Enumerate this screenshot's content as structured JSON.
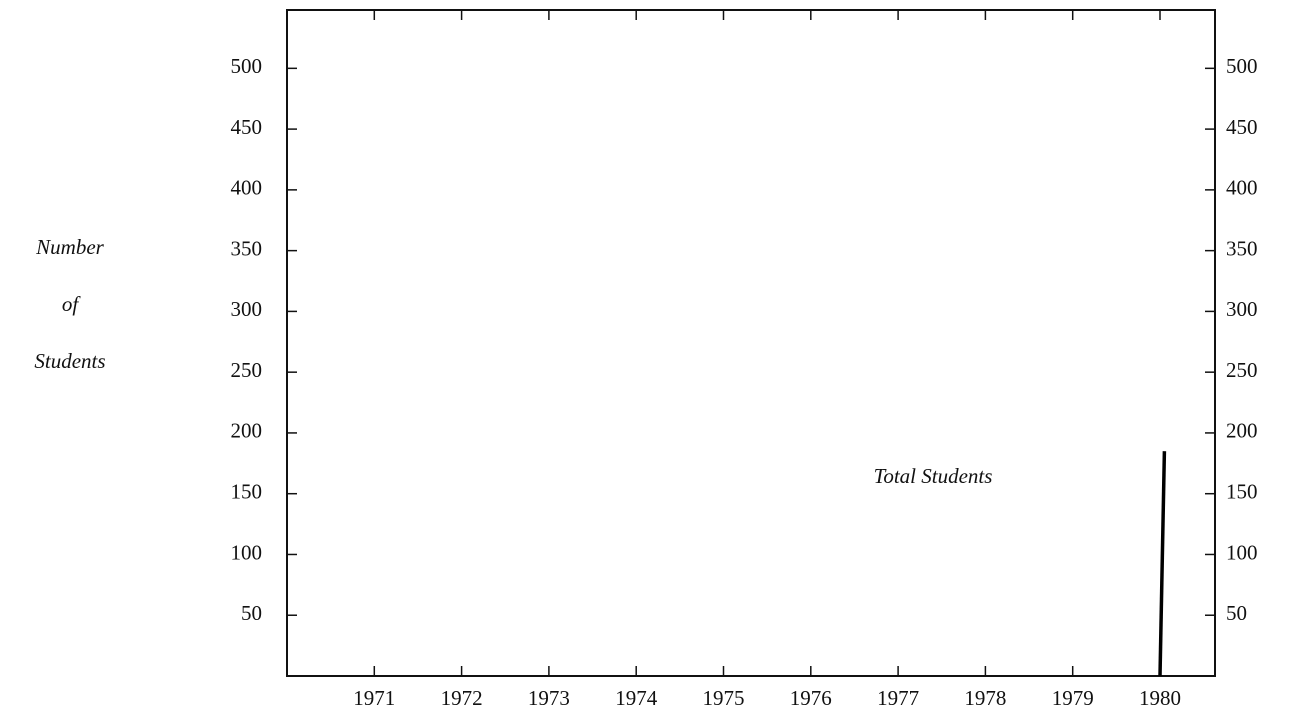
{
  "chart_data": {
    "type": "line",
    "y_label": [
      "Number",
      "of",
      "Students"
    ],
    "series": [
      {
        "name": "Total Students",
        "color": "#000000",
        "x": [
          1980,
          1980.05
        ],
        "values": [
          0,
          185
        ]
      }
    ],
    "xlim": [
      1970,
      1980.63
    ],
    "xticks": [
      1971,
      1972,
      1973,
      1974,
      1975,
      1976,
      1977,
      1978,
      1979,
      1980
    ],
    "ylim": [
      0,
      548
    ],
    "yticks": [
      50,
      100,
      150,
      200,
      250,
      300,
      350,
      400,
      450,
      500
    ],
    "y2lim": [
      0,
      548
    ],
    "y2ticks": [
      50,
      100,
      150,
      200,
      250,
      300,
      350,
      400,
      450,
      500
    ],
    "grid": false
  }
}
